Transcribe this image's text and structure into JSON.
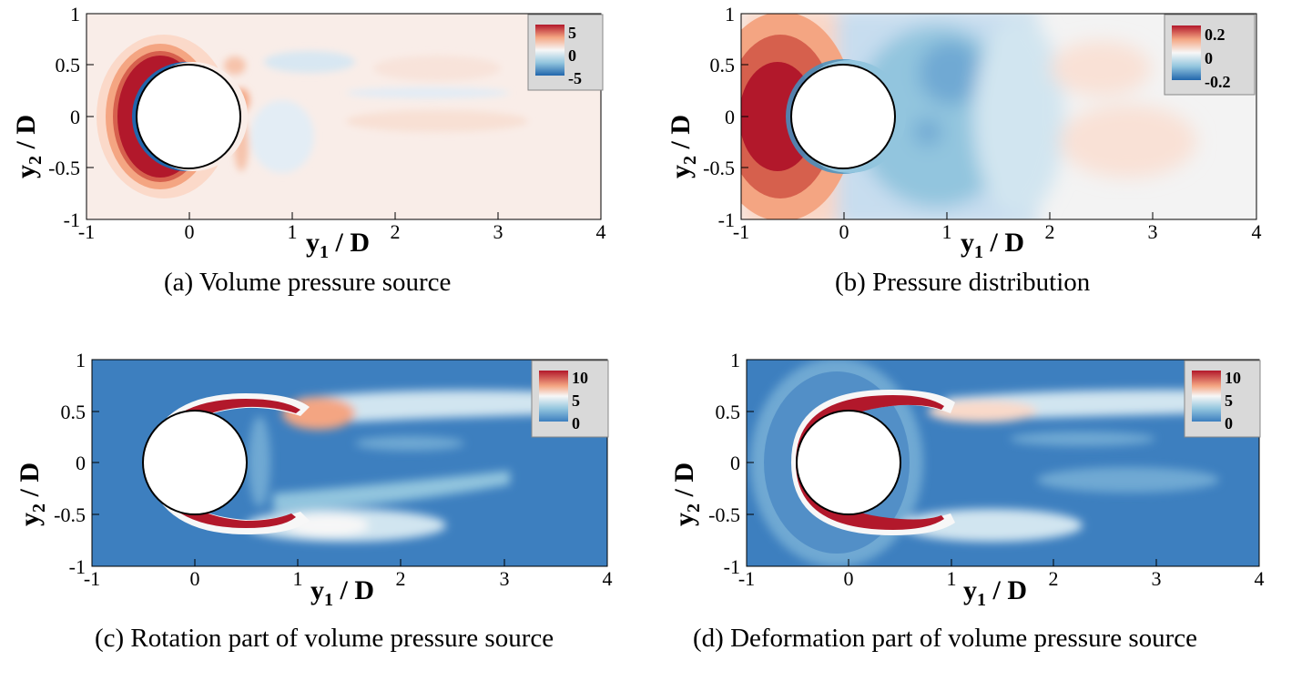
{
  "colors": {
    "deep_red": "#b2182b",
    "mid_red": "#d6604d",
    "light_red": "#f4a582",
    "pale_red": "#fddbc7",
    "white": "#f7f7f7",
    "pale_blue": "#d1e5f0",
    "light_blue": "#92c5de",
    "mid_blue": "#4393c3",
    "deep_blue": "#2166ac",
    "background_blue": "#3d7fbf",
    "legend_bg": "#d9d9d9"
  },
  "chart_data": [
    {
      "type": "contour",
      "id": "a",
      "caption": "(a) Volume pressure source",
      "xlabel_main": "y",
      "xlabel_sub": "1",
      "xlabel_rest": " / D",
      "ylabel_main": "y",
      "ylabel_sub": "2",
      "ylabel_rest": " / D",
      "xlim": [
        -1,
        4
      ],
      "ylim": [
        -1,
        1
      ],
      "xticks": [
        "-1",
        "0",
        "1",
        "2",
        "3",
        "4"
      ],
      "yticks": [
        "-1",
        "-0.5",
        "0",
        "0.5",
        "1"
      ],
      "legend": [
        "5",
        "0",
        "-5"
      ],
      "background": "#f9ede8",
      "cylinder": {
        "cx": 0,
        "cy": 0,
        "r": 0.5
      }
    },
    {
      "type": "contour",
      "id": "b",
      "caption": "(b) Pressure distribution",
      "xlabel_main": "y",
      "xlabel_sub": "1",
      "xlabel_rest": " / D",
      "ylabel_main": "y",
      "ylabel_sub": "2",
      "ylabel_rest": " / D",
      "xlim": [
        -1,
        4
      ],
      "ylim": [
        -1,
        1
      ],
      "xticks": [
        "-1",
        "0",
        "1",
        "2",
        "3",
        "4"
      ],
      "yticks": [
        "-1",
        "-0.5",
        "0",
        "0.5",
        "1"
      ],
      "legend": [
        "0.2",
        "0",
        "-0.2"
      ],
      "background": "#f3f3f3",
      "cylinder": {
        "cx": 0,
        "cy": 0,
        "r": 0.5
      }
    },
    {
      "type": "contour",
      "id": "c",
      "caption": "(c) Rotation part of volume pressure source",
      "xlabel_main": "y",
      "xlabel_sub": "1",
      "xlabel_rest": " / D",
      "ylabel_main": "y",
      "ylabel_sub": "2",
      "ylabel_rest": " / D",
      "xlim": [
        -1,
        4
      ],
      "ylim": [
        -1,
        1
      ],
      "xticks": [
        "-1",
        "0",
        "1",
        "2",
        "3",
        "4"
      ],
      "yticks": [
        "-1",
        "-0.5",
        "0",
        "0.5",
        "1"
      ],
      "legend": [
        "10",
        "5",
        "0"
      ],
      "background": "#3d7fbf",
      "cylinder": {
        "cx": 0,
        "cy": 0,
        "r": 0.5
      }
    },
    {
      "type": "contour",
      "id": "d",
      "caption": "(d) Deformation part of volume pressure source",
      "xlabel_main": "y",
      "xlabel_sub": "1",
      "xlabel_rest": " / D",
      "ylabel_main": "y",
      "ylabel_sub": "2",
      "ylabel_rest": " / D",
      "xlim": [
        -1,
        4
      ],
      "ylim": [
        -1,
        1
      ],
      "xticks": [
        "-1",
        "0",
        "1",
        "2",
        "3",
        "4"
      ],
      "yticks": [
        "-1",
        "-0.5",
        "0",
        "0.5",
        "1"
      ],
      "legend": [
        "10",
        "5",
        "0"
      ],
      "background": "#3d7fbf",
      "cylinder": {
        "cx": 0,
        "cy": 0,
        "r": 0.5
      }
    }
  ]
}
